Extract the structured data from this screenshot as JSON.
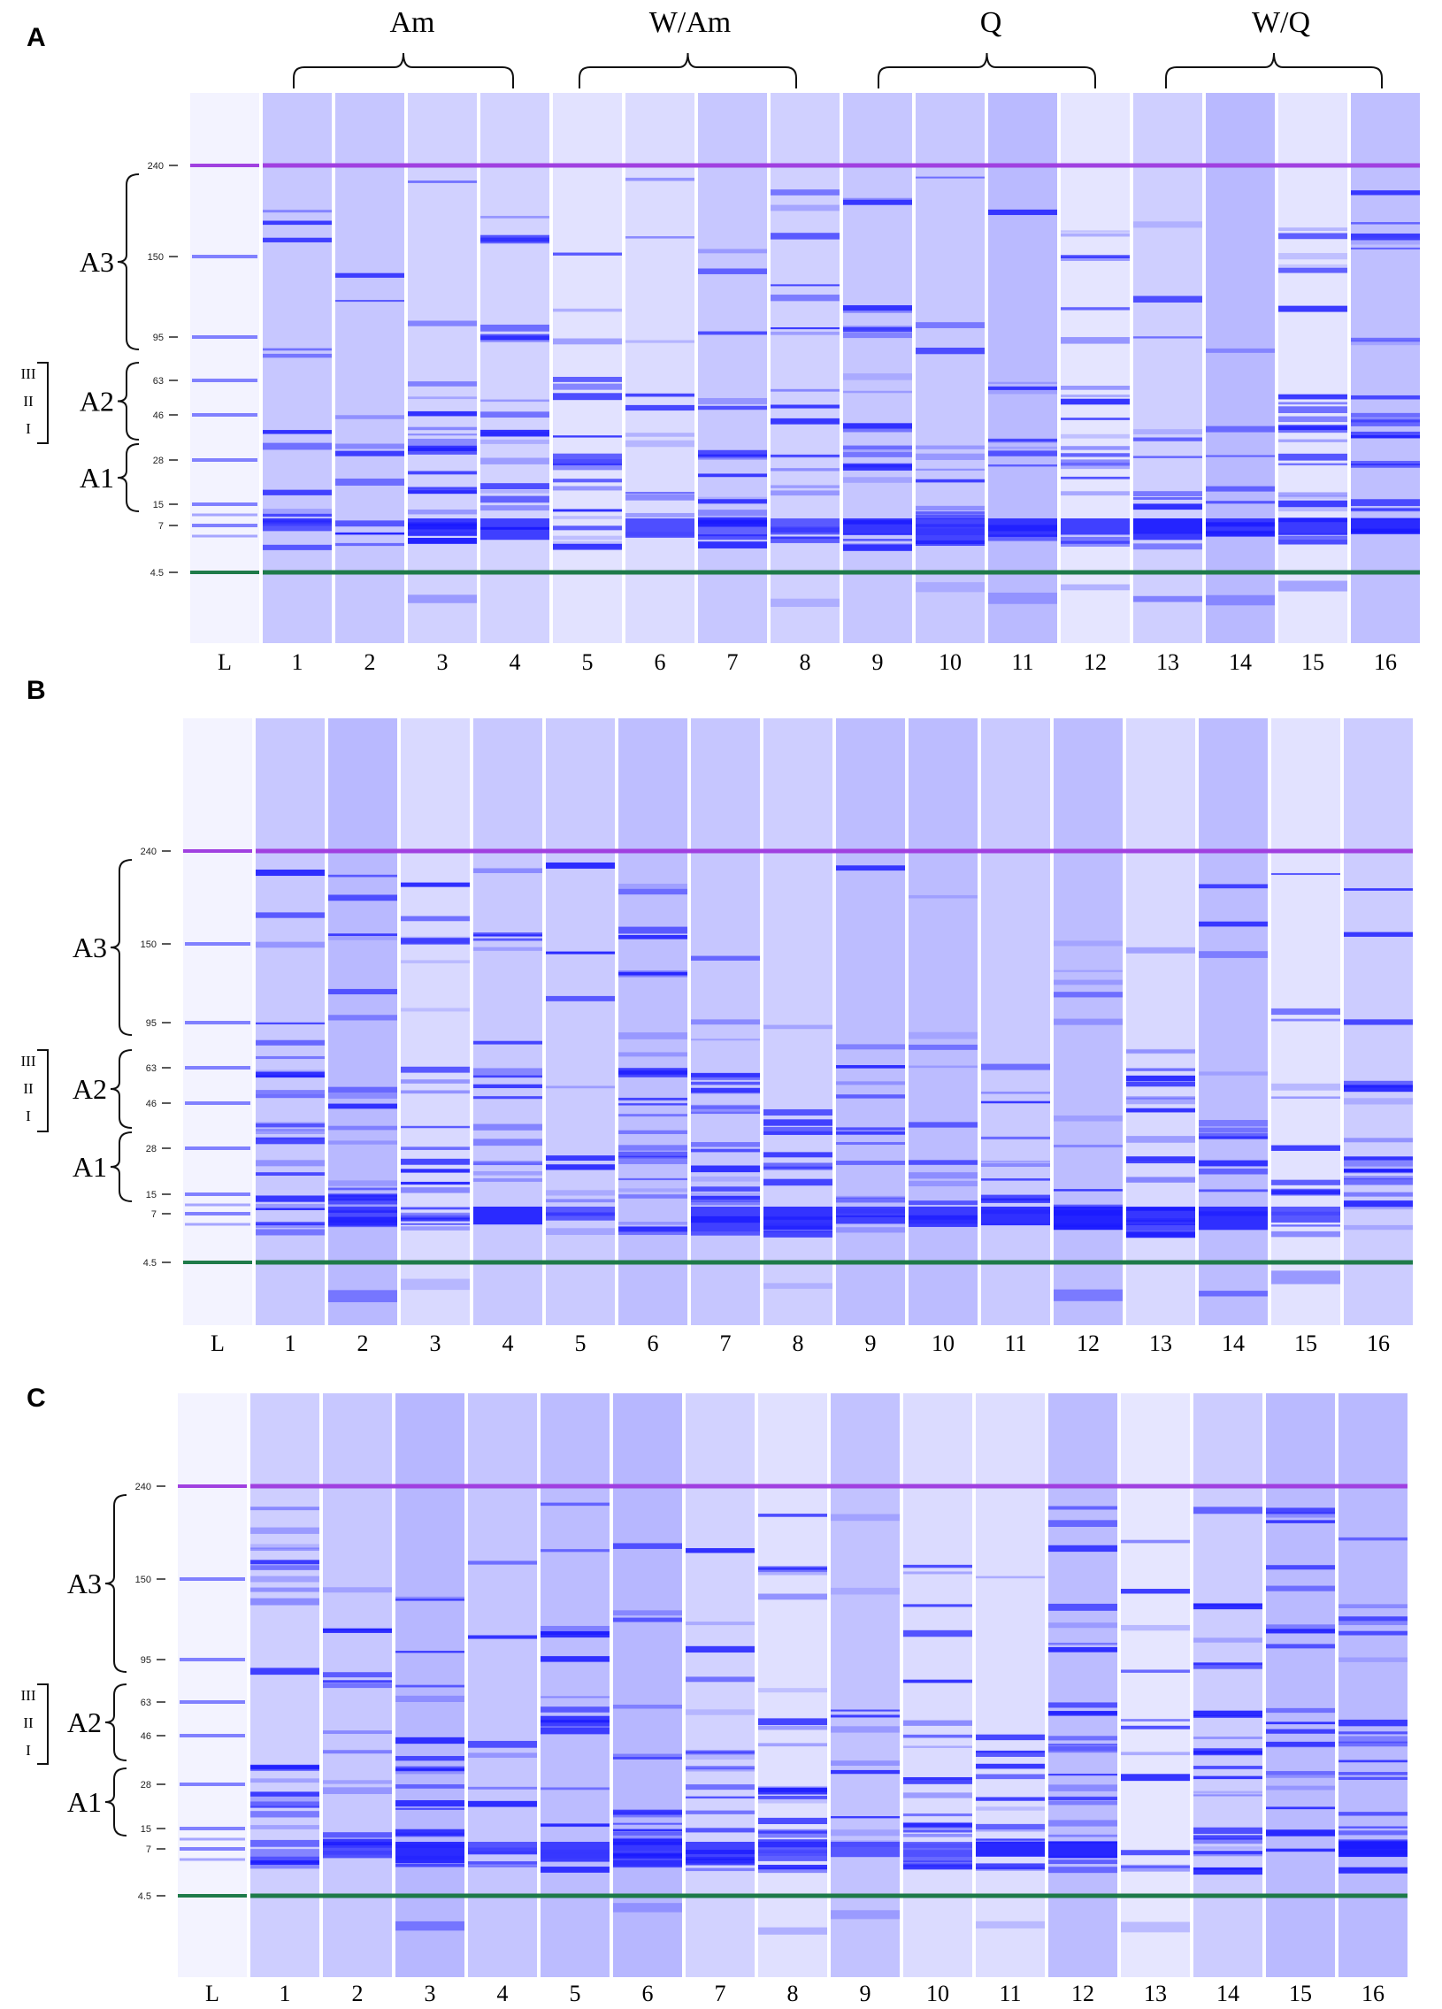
{
  "figure": {
    "panels": [
      "A",
      "B",
      "C"
    ],
    "ladder_label": "L",
    "lane_numbers": [
      "1",
      "2",
      "3",
      "4",
      "5",
      "6",
      "7",
      "8",
      "9",
      "10",
      "11",
      "12",
      "13",
      "14",
      "15",
      "16"
    ],
    "groups": [
      {
        "label": "Am",
        "lanes": [
          1,
          4
        ]
      },
      {
        "label": "W/Am",
        "lanes": [
          5,
          8
        ]
      },
      {
        "label": "Q",
        "lanes": [
          9,
          12
        ]
      },
      {
        "label": "W/Q",
        "lanes": [
          13,
          16
        ]
      }
    ],
    "marker_sizes": [
      "240",
      "150",
      "95",
      "63",
      "46",
      "28",
      "15",
      "7",
      "4.5"
    ],
    "regions": [
      {
        "label": "A3",
        "from": "240",
        "to": "95"
      },
      {
        "label": "A2",
        "from": "63",
        "to": "46"
      },
      {
        "label": "A1",
        "from": "28",
        "to": "15"
      }
    ],
    "a2_subregions": [
      "III",
      "II",
      "I"
    ],
    "upper_marker_color": "#a040e0",
    "lower_marker_color": "#1e7a4a",
    "band_color": "#1a1aff",
    "background_color": "#e8e8f8"
  }
}
